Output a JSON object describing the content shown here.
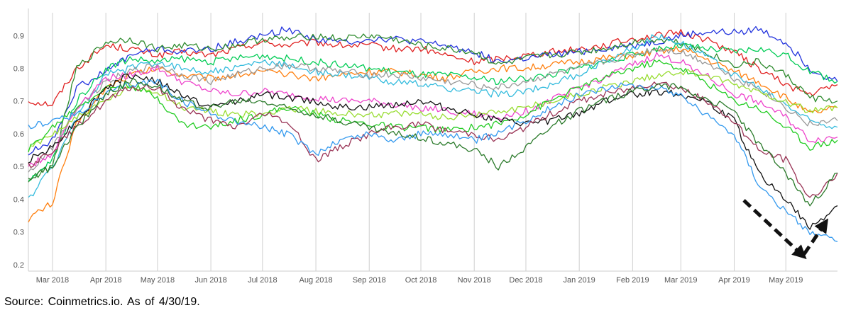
{
  "source_note": "Source:  Coinmetrics.io.  As  of  4/30/19.",
  "chart_data": {
    "type": "line",
    "title": "",
    "xlabel": "",
    "ylabel": "",
    "x_range": [
      "2018-02-15",
      "2019-05-31"
    ],
    "ylim": [
      0.18,
      0.97
    ],
    "yticks": [
      0.2,
      0.3,
      0.4,
      0.5,
      0.6,
      0.7,
      0.8,
      0.9
    ],
    "xtick_labels": [
      "Mar 2018",
      "Apr 2018",
      "May 2018",
      "Jun 2018",
      "Jul 2018",
      "Aug 2018",
      "Sep 2018",
      "Oct 2018",
      "Nov 2018",
      "Dec 2018",
      "Jan 2019",
      "Feb 2019",
      "Mar 2019",
      "Apr 2019",
      "May 2019"
    ],
    "xtick_dates": [
      "2018-03-01",
      "2018-04-01",
      "2018-05-01",
      "2018-06-01",
      "2018-07-01",
      "2018-08-01",
      "2018-09-01",
      "2018-10-01",
      "2018-11-01",
      "2018-12-01",
      "2019-01-01",
      "2019-02-01",
      "2019-03-01",
      "2019-04-01",
      "2019-05-01"
    ],
    "grid": "vertical",
    "legend": "none",
    "annotation": "dashed arrow: down then up",
    "series_dates": [
      "2018-02-15",
      "2018-03-01",
      "2018-03-15",
      "2018-04-01",
      "2018-04-15",
      "2018-05-01",
      "2018-05-15",
      "2018-06-01",
      "2018-06-15",
      "2018-07-01",
      "2018-07-15",
      "2018-08-01",
      "2018-08-15",
      "2018-09-01",
      "2018-09-15",
      "2018-10-01",
      "2018-10-15",
      "2018-11-01",
      "2018-11-15",
      "2018-12-01",
      "2018-12-15",
      "2019-01-01",
      "2019-01-15",
      "2019-02-01",
      "2019-02-15",
      "2019-03-01",
      "2019-03-15",
      "2019-04-01",
      "2019-04-15",
      "2019-05-01",
      "2019-05-15",
      "2019-05-31"
    ],
    "series": [
      {
        "color": "#e02020",
        "values": [
          0.7,
          0.69,
          0.8,
          0.87,
          0.86,
          0.84,
          0.85,
          0.84,
          0.86,
          0.88,
          0.87,
          0.88,
          0.87,
          0.87,
          0.86,
          0.86,
          0.84,
          0.82,
          0.83,
          0.84,
          0.85,
          0.86,
          0.87,
          0.89,
          0.9,
          0.91,
          0.89,
          0.85,
          0.8,
          0.75,
          0.72,
          0.75
        ]
      },
      {
        "color": "#2233dd",
        "values": [
          0.54,
          0.58,
          0.74,
          0.79,
          0.84,
          0.86,
          0.85,
          0.86,
          0.88,
          0.9,
          0.92,
          0.89,
          0.88,
          0.89,
          0.89,
          0.88,
          0.87,
          0.85,
          0.82,
          0.83,
          0.84,
          0.85,
          0.86,
          0.87,
          0.88,
          0.9,
          0.91,
          0.91,
          0.92,
          0.88,
          0.8,
          0.76
        ]
      },
      {
        "color": "#2e8b2e",
        "values": [
          0.46,
          0.5,
          0.8,
          0.88,
          0.89,
          0.86,
          0.87,
          0.86,
          0.87,
          0.89,
          0.89,
          0.9,
          0.89,
          0.9,
          0.89,
          0.87,
          0.86,
          0.85,
          0.81,
          0.83,
          0.84,
          0.85,
          0.86,
          0.88,
          0.89,
          0.88,
          0.85,
          0.81,
          0.82,
          0.78,
          0.71,
          0.7
        ]
      },
      {
        "color": "#ff7f0e",
        "values": [
          0.34,
          0.39,
          0.63,
          0.74,
          0.78,
          0.8,
          0.78,
          0.77,
          0.78,
          0.79,
          0.78,
          0.77,
          0.78,
          0.79,
          0.79,
          0.78,
          0.77,
          0.79,
          0.8,
          0.8,
          0.81,
          0.82,
          0.83,
          0.84,
          0.85,
          0.86,
          0.83,
          0.79,
          0.76,
          0.71,
          0.66,
          0.68
        ]
      },
      {
        "color": "#00cc55",
        "values": [
          0.45,
          0.52,
          0.7,
          0.8,
          0.83,
          0.82,
          0.83,
          0.82,
          0.83,
          0.84,
          0.83,
          0.82,
          0.81,
          0.8,
          0.79,
          0.78,
          0.78,
          0.77,
          0.76,
          0.77,
          0.78,
          0.8,
          0.82,
          0.84,
          0.86,
          0.87,
          0.86,
          0.85,
          0.86,
          0.84,
          0.79,
          0.76
        ]
      },
      {
        "color": "#33bbdd",
        "values": [
          0.4,
          0.5,
          0.65,
          0.78,
          0.8,
          0.82,
          0.8,
          0.79,
          0.8,
          0.82,
          0.81,
          0.79,
          0.78,
          0.77,
          0.76,
          0.75,
          0.74,
          0.73,
          0.72,
          0.73,
          0.75,
          0.78,
          0.82,
          0.86,
          0.9,
          0.88,
          0.84,
          0.78,
          0.74,
          0.69,
          0.64,
          0.62
        ]
      },
      {
        "color": "#999999",
        "values": [
          0.48,
          0.56,
          0.68,
          0.76,
          0.79,
          0.81,
          0.78,
          0.76,
          0.78,
          0.8,
          0.81,
          0.8,
          0.79,
          0.78,
          0.78,
          0.77,
          0.76,
          0.75,
          0.74,
          0.76,
          0.78,
          0.8,
          0.82,
          0.84,
          0.86,
          0.85,
          0.82,
          0.77,
          0.74,
          0.68,
          0.63,
          0.64
        ]
      },
      {
        "color": "#ee44cc",
        "values": [
          0.5,
          0.54,
          0.68,
          0.77,
          0.78,
          0.8,
          0.76,
          0.73,
          0.72,
          0.73,
          0.72,
          0.71,
          0.7,
          0.7,
          0.69,
          0.68,
          0.67,
          0.66,
          0.65,
          0.67,
          0.7,
          0.74,
          0.77,
          0.81,
          0.84,
          0.82,
          0.78,
          0.72,
          0.7,
          0.65,
          0.58,
          0.59
        ]
      },
      {
        "color": "#99dd33",
        "values": [
          0.55,
          0.6,
          0.65,
          0.7,
          0.74,
          0.73,
          0.68,
          0.67,
          0.66,
          0.66,
          0.68,
          0.67,
          0.66,
          0.66,
          0.66,
          0.66,
          0.65,
          0.66,
          0.67,
          0.68,
          0.7,
          0.72,
          0.74,
          0.76,
          0.78,
          0.79,
          0.78,
          0.75,
          0.73,
          0.7,
          0.67,
          0.68
        ]
      },
      {
        "color": "#22cc22",
        "values": [
          0.55,
          0.62,
          0.68,
          0.74,
          0.75,
          0.71,
          0.63,
          0.62,
          0.64,
          0.66,
          0.68,
          0.66,
          0.64,
          0.63,
          0.62,
          0.62,
          0.61,
          0.62,
          0.63,
          0.66,
          0.7,
          0.74,
          0.77,
          0.8,
          0.82,
          0.8,
          0.76,
          0.7,
          0.68,
          0.62,
          0.56,
          0.58
        ]
      },
      {
        "color": "#111111",
        "values": [
          0.52,
          0.56,
          0.64,
          0.74,
          0.78,
          0.76,
          0.72,
          0.68,
          0.7,
          0.72,
          0.71,
          0.7,
          0.68,
          0.68,
          0.69,
          0.7,
          0.68,
          0.66,
          0.64,
          0.63,
          0.64,
          0.66,
          0.7,
          0.72,
          0.73,
          0.72,
          0.7,
          0.64,
          0.48,
          0.4,
          0.31,
          0.38
        ]
      },
      {
        "color": "#993355",
        "values": [
          0.5,
          0.55,
          0.62,
          0.7,
          0.74,
          0.74,
          0.68,
          0.64,
          0.62,
          0.66,
          0.64,
          0.52,
          0.56,
          0.6,
          0.62,
          0.63,
          0.61,
          0.6,
          0.58,
          0.62,
          0.66,
          0.7,
          0.72,
          0.74,
          0.76,
          0.74,
          0.7,
          0.64,
          0.55,
          0.52,
          0.4,
          0.48
        ]
      },
      {
        "color": "#3399ee",
        "values": [
          0.62,
          0.64,
          0.66,
          0.72,
          0.75,
          0.76,
          0.7,
          0.66,
          0.64,
          0.62,
          0.6,
          0.54,
          0.58,
          0.6,
          0.58,
          0.6,
          0.6,
          0.58,
          0.6,
          0.64,
          0.68,
          0.72,
          0.74,
          0.75,
          0.74,
          0.72,
          0.66,
          0.6,
          0.45,
          0.36,
          0.3,
          0.27
        ]
      },
      {
        "color": "#2a7a2a",
        "values": [
          0.46,
          0.5,
          0.62,
          0.72,
          0.76,
          0.75,
          0.7,
          0.68,
          0.7,
          0.7,
          0.68,
          0.66,
          0.64,
          0.62,
          0.6,
          0.59,
          0.57,
          0.55,
          0.5,
          0.56,
          0.62,
          0.67,
          0.7,
          0.73,
          0.75,
          0.74,
          0.71,
          0.67,
          0.57,
          0.48,
          0.38,
          0.48
        ]
      }
    ]
  },
  "annotation": {
    "arrow_color": "#111111"
  }
}
